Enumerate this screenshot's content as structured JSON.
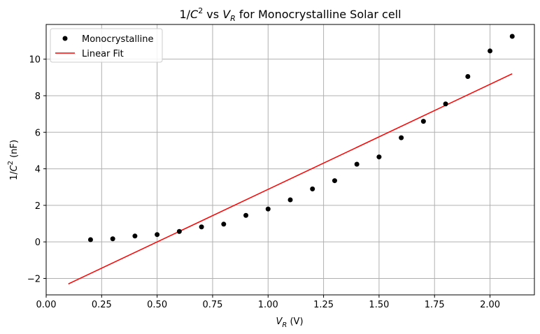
{
  "chart_data": {
    "type": "scatter",
    "title": "1/C² vs V_R for Monocrystalline Solar cell",
    "title_parts": {
      "lead": "1/",
      "var": "C",
      "sup": "2",
      "mid": " vs ",
      "var2": "V",
      "sub2": "R",
      "tail": " for Monocrystalline Solar cell"
    },
    "xlabel": "V_R (V)",
    "xlabel_parts": {
      "var": "V",
      "sub": "R",
      "tail": " (V)"
    },
    "ylabel": "1/C² (nF)",
    "ylabel_parts": {
      "lead": "1/",
      "var": "C",
      "sup": "2",
      "tail": " (nF)"
    },
    "xlim": [
      0.0,
      2.2
    ],
    "ylim": [
      -2.9,
      11.9
    ],
    "xticks": [
      0.0,
      0.25,
      0.5,
      0.75,
      1.0,
      1.25,
      1.5,
      1.75,
      2.0
    ],
    "xtick_labels": [
      "0.00",
      "0.25",
      "0.50",
      "0.75",
      "1.00",
      "1.25",
      "1.50",
      "1.75",
      "2.00"
    ],
    "yticks": [
      -2,
      0,
      2,
      4,
      6,
      8,
      10
    ],
    "ytick_labels": [
      "−2",
      "0",
      "2",
      "4",
      "6",
      "8",
      "10"
    ],
    "grid": true,
    "legend_position": "top-left",
    "series": [
      {
        "name": "Monocrystalline",
        "kind": "scatter",
        "color": "#000000",
        "x": [
          0.2,
          0.3,
          0.4,
          0.5,
          0.6,
          0.7,
          0.8,
          0.9,
          1.0,
          1.1,
          1.2,
          1.3,
          1.4,
          1.5,
          1.6,
          1.7,
          1.8,
          1.9,
          2.0,
          2.1
        ],
        "y": [
          0.12,
          0.17,
          0.32,
          0.4,
          0.57,
          0.82,
          0.97,
          1.45,
          1.8,
          2.3,
          2.9,
          3.35,
          4.25,
          4.65,
          5.7,
          6.6,
          7.55,
          9.05,
          10.45,
          11.25
        ]
      },
      {
        "name": "Linear Fit",
        "kind": "line",
        "color": "#ff0000",
        "x": [
          0.1,
          2.1
        ],
        "y": [
          -2.3,
          9.2
        ]
      }
    ]
  }
}
